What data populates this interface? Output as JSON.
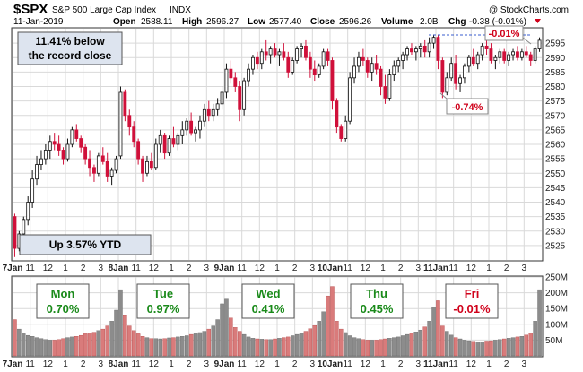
{
  "header": {
    "symbol": "$SPX",
    "name": "S&P 500 Large Cap Index",
    "exchange": "INDX",
    "date": "11-Jan-2019",
    "open_label": "Open",
    "open": "2588.11",
    "high_label": "High",
    "high": "2596.27",
    "low_label": "Low",
    "low": "2577.40",
    "close_label": "Close",
    "close": "2596.26",
    "volume_label": "Volume",
    "volume": "2.0B",
    "chg_label": "Chg",
    "chg": "-0.38 (-0.01%)",
    "copyright": "@ StockCharts.com"
  },
  "annotations": {
    "record_box": [
      "11.41% below",
      "the record close"
    ],
    "ytd_box": "Up 3.57% YTD",
    "callout_peak": "-0.01%",
    "callout_drop": "-0.74%"
  },
  "day_boxes": [
    {
      "day": "Mon",
      "pct": "0.70%",
      "color": "#1a8a1a"
    },
    {
      "day": "Tue",
      "pct": "0.97%",
      "color": "#1a8a1a"
    },
    {
      "day": "Wed",
      "pct": "0.41%",
      "color": "#1a8a1a"
    },
    {
      "day": "Thu",
      "pct": "0.45%",
      "color": "#1a8a1a"
    },
    {
      "day": "Fri",
      "pct": "-0.01%",
      "color": "#d0021b"
    }
  ],
  "colors": {
    "up": "#111111",
    "down": "#d0103a",
    "vol_up": "#8c8c8c",
    "vol_down": "#d97b7b",
    "grid": "#d9d9d9",
    "callout": "#d0021b"
  },
  "chart_data": {
    "type": "candlestick",
    "price_axis": {
      "min": 2520,
      "max": 2600,
      "ticks": [
        2525,
        2530,
        2535,
        2540,
        2545,
        2550,
        2555,
        2560,
        2565,
        2570,
        2575,
        2580,
        2585,
        2590,
        2595
      ]
    },
    "volume_axis": {
      "min": 0,
      "max": 250,
      "unit": "M",
      "ticks": [
        50,
        100,
        150,
        200,
        250
      ],
      "tick_labels": [
        "50M",
        "100M",
        "150M",
        "200M",
        "250M"
      ]
    },
    "x_tick_labels": [
      "7Jan",
      "11",
      "12",
      "1",
      "2",
      "3",
      "8Jan",
      "11",
      "12",
      "1",
      "2",
      "3",
      "9Jan",
      "11",
      "12",
      "1",
      "2",
      "3",
      "10Jan",
      "11",
      "12",
      "1",
      "2",
      "3",
      "11Jan",
      "11",
      "12",
      "1",
      "2",
      "3"
    ],
    "grid": true,
    "candles": [
      [
        2535,
        2536,
        2521,
        2524
      ],
      [
        2524,
        2530,
        2523,
        2529
      ],
      [
        2529,
        2535,
        2527,
        2534
      ],
      [
        2534,
        2542,
        2532,
        2540
      ],
      [
        2540,
        2551,
        2538,
        2548
      ],
      [
        2548,
        2556,
        2546,
        2553
      ],
      [
        2553,
        2558,
        2551,
        2555
      ],
      [
        2555,
        2560,
        2553,
        2558
      ],
      [
        2558,
        2563,
        2555,
        2561
      ],
      [
        2561,
        2564,
        2558,
        2560
      ],
      [
        2560,
        2563,
        2556,
        2558
      ],
      [
        2558,
        2559,
        2553,
        2555
      ],
      [
        2555,
        2562,
        2554,
        2560
      ],
      [
        2560,
        2566,
        2559,
        2565
      ],
      [
        2565,
        2567,
        2561,
        2562
      ],
      [
        2562,
        2563,
        2557,
        2559
      ],
      [
        2559,
        2560,
        2553,
        2555
      ],
      [
        2555,
        2558,
        2549,
        2552
      ],
      [
        2552,
        2553,
        2547,
        2550
      ],
      [
        2550,
        2557,
        2549,
        2556
      ],
      [
        2556,
        2559,
        2553,
        2554
      ],
      [
        2554,
        2557,
        2547,
        2549
      ],
      [
        2549,
        2552,
        2546,
        2551
      ],
      [
        2551,
        2556,
        2550,
        2555
      ],
      [
        2556,
        2580,
        2555,
        2578
      ],
      [
        2578,
        2579,
        2568,
        2570
      ],
      [
        2570,
        2572,
        2563,
        2566
      ],
      [
        2566,
        2568,
        2559,
        2561
      ],
      [
        2561,
        2562,
        2553,
        2555
      ],
      [
        2555,
        2556,
        2547,
        2550
      ],
      [
        2550,
        2556,
        2549,
        2554
      ],
      [
        2554,
        2557,
        2551,
        2552
      ],
      [
        2552,
        2562,
        2551,
        2560
      ],
      [
        2560,
        2565,
        2557,
        2563
      ],
      [
        2563,
        2564,
        2555,
        2557
      ],
      [
        2557,
        2563,
        2556,
        2562
      ],
      [
        2562,
        2566,
        2559,
        2560
      ],
      [
        2560,
        2564,
        2558,
        2563
      ],
      [
        2563,
        2568,
        2560,
        2565
      ],
      [
        2565,
        2569,
        2563,
        2568
      ],
      [
        2568,
        2571,
        2563,
        2564
      ],
      [
        2564,
        2566,
        2561,
        2565
      ],
      [
        2565,
        2570,
        2562,
        2568
      ],
      [
        2568,
        2574,
        2566,
        2572
      ],
      [
        2572,
        2575,
        2568,
        2570
      ],
      [
        2570,
        2574,
        2568,
        2572
      ],
      [
        2572,
        2576,
        2570,
        2574
      ],
      [
        2574,
        2580,
        2572,
        2578
      ],
      [
        2578,
        2588,
        2576,
        2586
      ],
      [
        2586,
        2589,
        2581,
        2583
      ],
      [
        2583,
        2585,
        2578,
        2580
      ],
      [
        2580,
        2582,
        2568,
        2572
      ],
      [
        2572,
        2583,
        2570,
        2582
      ],
      [
        2582,
        2588,
        2580,
        2586
      ],
      [
        2586,
        2591,
        2584,
        2590
      ],
      [
        2590,
        2592,
        2586,
        2588
      ],
      [
        2588,
        2593,
        2586,
        2592
      ],
      [
        2592,
        2596,
        2589,
        2591
      ],
      [
        2591,
        2594,
        2588,
        2593
      ],
      [
        2593,
        2595,
        2590,
        2591
      ],
      [
        2591,
        2593,
        2587,
        2592
      ],
      [
        2592,
        2595,
        2589,
        2590
      ],
      [
        2590,
        2592,
        2583,
        2585
      ],
      [
        2585,
        2590,
        2584,
        2589
      ],
      [
        2589,
        2594,
        2588,
        2593
      ],
      [
        2593,
        2595,
        2590,
        2594
      ],
      [
        2594,
        2596,
        2589,
        2590
      ],
      [
        2590,
        2592,
        2583,
        2586
      ],
      [
        2586,
        2589,
        2582,
        2584
      ],
      [
        2584,
        2588,
        2583,
        2587
      ],
      [
        2587,
        2593,
        2586,
        2592
      ],
      [
        2592,
        2593,
        2587,
        2589
      ],
      [
        2589,
        2590,
        2572,
        2575
      ],
      [
        2575,
        2576,
        2564,
        2566
      ],
      [
        2566,
        2567,
        2561,
        2562
      ],
      [
        2562,
        2570,
        2561,
        2568
      ],
      [
        2568,
        2585,
        2567,
        2583
      ],
      [
        2583,
        2590,
        2581,
        2587
      ],
      [
        2587,
        2592,
        2585,
        2590
      ],
      [
        2590,
        2593,
        2587,
        2589
      ],
      [
        2589,
        2590,
        2583,
        2585
      ],
      [
        2585,
        2590,
        2582,
        2588
      ],
      [
        2588,
        2591,
        2584,
        2586
      ],
      [
        2586,
        2587,
        2577,
        2580
      ],
      [
        2580,
        2584,
        2574,
        2576
      ],
      [
        2576,
        2586,
        2575,
        2584
      ],
      [
        2584,
        2589,
        2582,
        2587
      ],
      [
        2587,
        2590,
        2585,
        2589
      ],
      [
        2589,
        2592,
        2586,
        2591
      ],
      [
        2591,
        2594,
        2589,
        2593
      ],
      [
        2593,
        2595,
        2591,
        2592
      ],
      [
        2592,
        2594,
        2589,
        2593
      ],
      [
        2593,
        2595,
        2590,
        2594
      ],
      [
        2594,
        2596,
        2590,
        2592
      ],
      [
        2592,
        2597,
        2590,
        2595
      ],
      [
        2595,
        2598,
        2593,
        2597
      ],
      [
        2597,
        2598,
        2586,
        2589
      ],
      [
        2589,
        2590,
        2576,
        2578
      ],
      [
        2578,
        2585,
        2577,
        2583
      ],
      [
        2583,
        2590,
        2582,
        2588
      ],
      [
        2588,
        2591,
        2579,
        2581
      ],
      [
        2581,
        2584,
        2578,
        2583
      ],
      [
        2583,
        2588,
        2581,
        2587
      ],
      [
        2587,
        2591,
        2585,
        2590
      ],
      [
        2590,
        2593,
        2587,
        2588
      ],
      [
        2588,
        2592,
        2586,
        2591
      ],
      [
        2591,
        2595,
        2589,
        2594
      ],
      [
        2594,
        2596,
        2591,
        2593
      ],
      [
        2593,
        2595,
        2588,
        2589
      ],
      [
        2589,
        2591,
        2586,
        2590
      ],
      [
        2590,
        2593,
        2588,
        2592
      ],
      [
        2592,
        2593,
        2588,
        2589
      ],
      [
        2589,
        2592,
        2587,
        2591
      ],
      [
        2591,
        2593,
        2589,
        2592
      ],
      [
        2592,
        2594,
        2589,
        2590
      ],
      [
        2590,
        2593,
        2589,
        2592
      ],
      [
        2592,
        2594,
        2590,
        2591
      ],
      [
        2591,
        2592,
        2587,
        2589
      ],
      [
        2589,
        2594,
        2588,
        2593
      ],
      [
        2593,
        2597,
        2592,
        2596
      ]
    ],
    "volumes": [
      115,
      85,
      70,
      65,
      62,
      58,
      55,
      52,
      50,
      50,
      52,
      55,
      58,
      60,
      62,
      65,
      70,
      72,
      75,
      80,
      85,
      95,
      110,
      145,
      210,
      130,
      95,
      80,
      70,
      62,
      58,
      55,
      55,
      54,
      55,
      57,
      58,
      60,
      62,
      64,
      68,
      70,
      74,
      78,
      85,
      95,
      115,
      165,
      180,
      120,
      90,
      78,
      68,
      60,
      56,
      54,
      53,
      52,
      52,
      54,
      56,
      58,
      60,
      64,
      68,
      72,
      78,
      86,
      96,
      110,
      140,
      190,
      220,
      110,
      85,
      74,
      64,
      58,
      55,
      52,
      50,
      50,
      50,
      52,
      54,
      56,
      58,
      60,
      64,
      68,
      72,
      76,
      82,
      92,
      110,
      155,
      175,
      95,
      78,
      66,
      58,
      54,
      50,
      48,
      46,
      45,
      45,
      47,
      48,
      50,
      52,
      54,
      56,
      58,
      60,
      62,
      66,
      72,
      110,
      210
    ]
  }
}
